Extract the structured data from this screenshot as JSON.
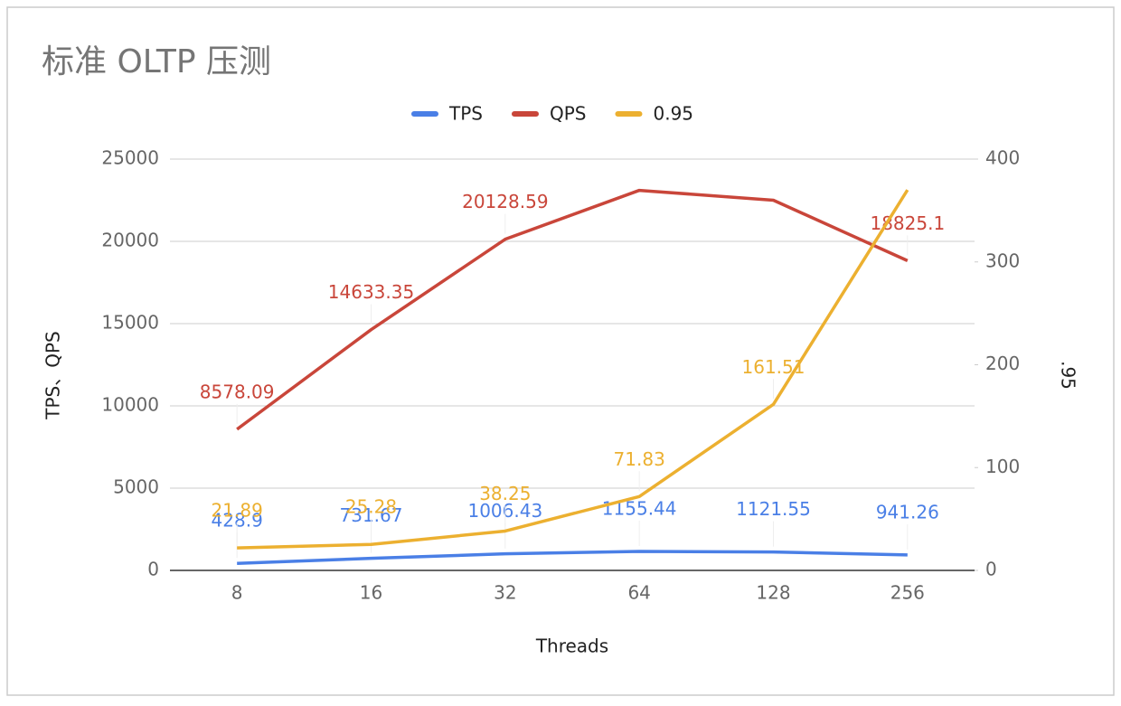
{
  "chart_data": {
    "type": "line",
    "title": "标准 OLTP 压测",
    "x_label": "Threads",
    "y_label": "TPS、QPS",
    "y2_label": ".95",
    "categories": [
      "8",
      "16",
      "32",
      "64",
      "128",
      "256"
    ],
    "series": [
      {
        "name": "TPS",
        "color": "#4a7fe6",
        "values": [
          428.9,
          731.67,
          1006.43,
          1155.44,
          1121.55,
          941.26
        ]
      },
      {
        "name": "QPS",
        "color": "#c9463a",
        "values": [
          8578.09,
          14633.35,
          20128.59,
          23100,
          22500,
          18825.1
        ],
        "value_labels": [
          "8578.09",
          "14633.35",
          "20128.59",
          null,
          null,
          "18825.1"
        ]
      },
      {
        "name": "0.95",
        "color": "#ecb030",
        "axis": "y2",
        "values": [
          21.89,
          25.28,
          38.25,
          71.83,
          161.51,
          370
        ],
        "value_labels": [
          "21.89",
          "25.28",
          "38.25",
          "71.83",
          "161.51",
          null
        ]
      }
    ],
    "ylim": [
      0,
      25000
    ],
    "yticks": [
      0,
      5000,
      10000,
      15000,
      20000,
      25000
    ],
    "y2lim": [
      0,
      400
    ],
    "y2ticks": [
      0,
      100,
      200,
      300,
      400
    ],
    "grid": true,
    "legend": "top"
  }
}
